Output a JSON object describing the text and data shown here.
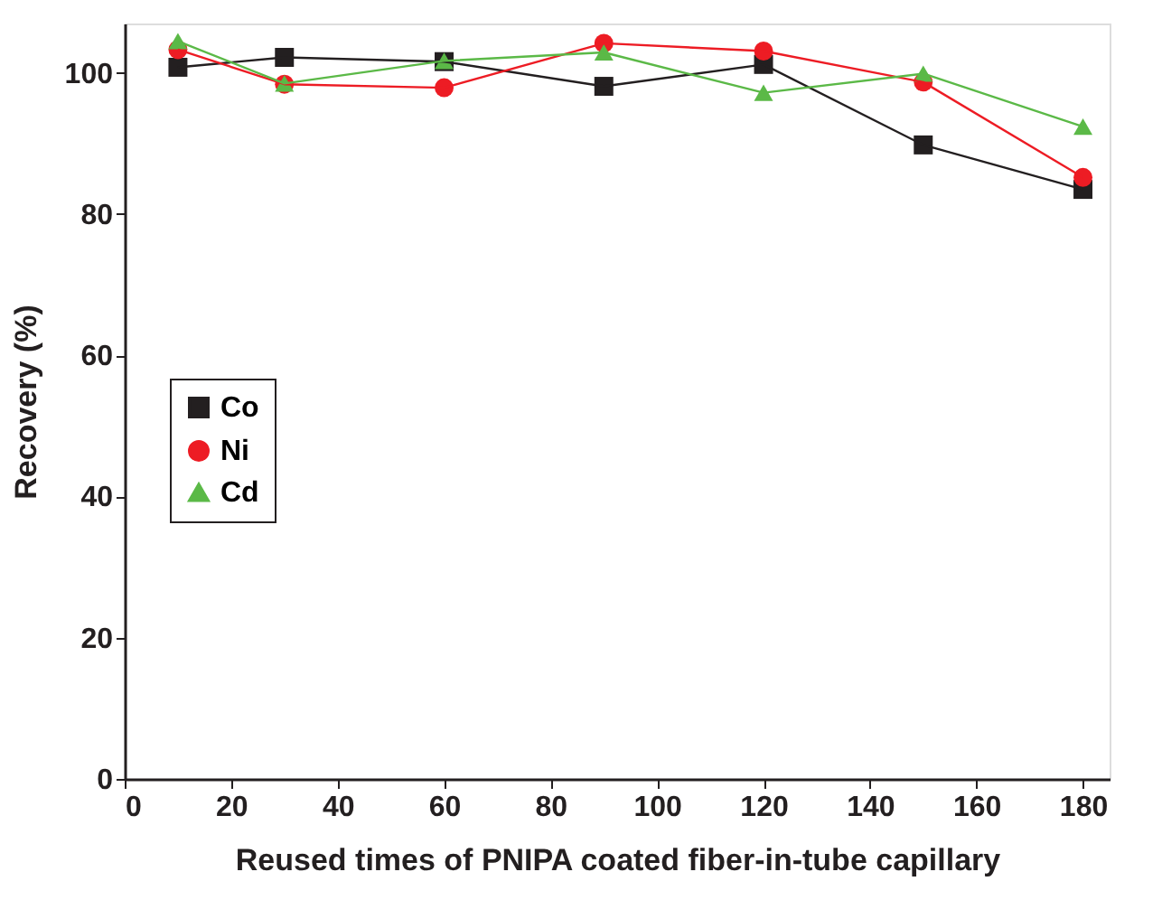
{
  "chart_data": {
    "type": "line",
    "xlabel": "Reused times of PNIPA coated fiber-in-tube capillary",
    "ylabel": "Recovery (%)",
    "x": [
      10,
      30,
      60,
      90,
      120,
      150,
      180
    ],
    "series": [
      {
        "name": "Co",
        "color": "#231f20",
        "marker": "square",
        "values": [
          100.8,
          102.2,
          101.6,
          98.1,
          101.2,
          89.8,
          83.5
        ]
      },
      {
        "name": "Ni",
        "color": "#ed1c24",
        "marker": "circle",
        "values": [
          103.3,
          98.4,
          97.9,
          104.2,
          103.1,
          98.7,
          85.2
        ]
      },
      {
        "name": "Cd",
        "color": "#5bb947",
        "marker": "triangle",
        "values": [
          104.5,
          98.5,
          101.7,
          102.9,
          97.2,
          99.9,
          92.4
        ]
      }
    ],
    "xlim": [
      0,
      185
    ],
    "xticks": [
      0,
      20,
      40,
      60,
      80,
      100,
      120,
      140,
      160,
      180
    ],
    "ylim": [
      0,
      107
    ],
    "yticks": [
      0,
      20,
      40,
      60,
      80,
      100
    ],
    "grid": false,
    "legend": "center left",
    "line_style": "solid"
  }
}
